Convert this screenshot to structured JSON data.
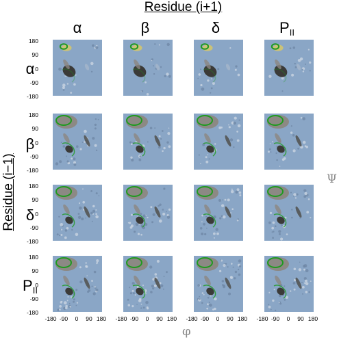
{
  "titles": {
    "top": "Residue (i+1)",
    "left": "Residue (i−1)"
  },
  "columns": [
    {
      "label": "α",
      "sub": ""
    },
    {
      "label": "β",
      "sub": ""
    },
    {
      "label": "δ",
      "sub": ""
    },
    {
      "label": "P",
      "sub": "II"
    }
  ],
  "rows": [
    {
      "label": "α",
      "sub": ""
    },
    {
      "label": "β",
      "sub": ""
    },
    {
      "label": "δ",
      "sub": ""
    },
    {
      "label": "P",
      "sub": "II"
    }
  ],
  "y_ticks": [
    "180",
    "90",
    "0",
    "-90",
    "-180"
  ],
  "x_ticks": [
    "-180",
    "-90",
    "0",
    "90",
    "180"
  ],
  "axis_labels": {
    "psi": "Ψ",
    "phi": "φ"
  },
  "colors": {
    "panel_background": "#8aa6c6",
    "basin_dark": "#3b3a38",
    "basin_mid": "#8c8781",
    "contour_green": "#1f9a1f",
    "contour_yellow": "#e5cf57",
    "axis_symbol": "#8a8a8a"
  },
  "grid_size": "4x4"
}
